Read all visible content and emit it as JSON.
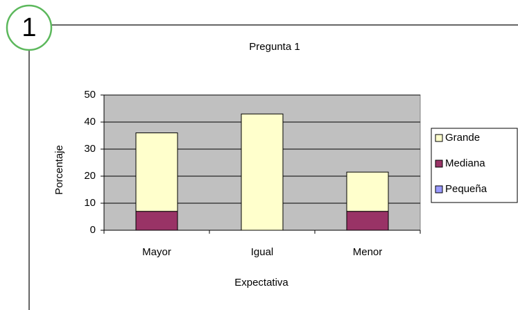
{
  "badge": "1",
  "chart_data": {
    "type": "stacked_bar",
    "title": "Pregunta 1",
    "x_label": "Expectativa",
    "y_label": "Porcentaje",
    "categories": [
      "Mayor",
      "Igual",
      "Menor"
    ],
    "series": [
      {
        "name": "Grande",
        "color": "#ffffcc",
        "values": [
          29,
          43,
          14.5
        ]
      },
      {
        "name": "Mediana",
        "color": "#993366",
        "values": [
          7,
          0,
          7
        ]
      },
      {
        "name": "Pequeña",
        "color": "#9999ff",
        "values": [
          0,
          0,
          0
        ]
      }
    ],
    "ylim": [
      0,
      50
    ],
    "yticks": [
      0,
      10,
      20,
      30,
      40,
      50
    ],
    "grid": true,
    "plot_background": "#c0c0c0",
    "legend": "right"
  }
}
